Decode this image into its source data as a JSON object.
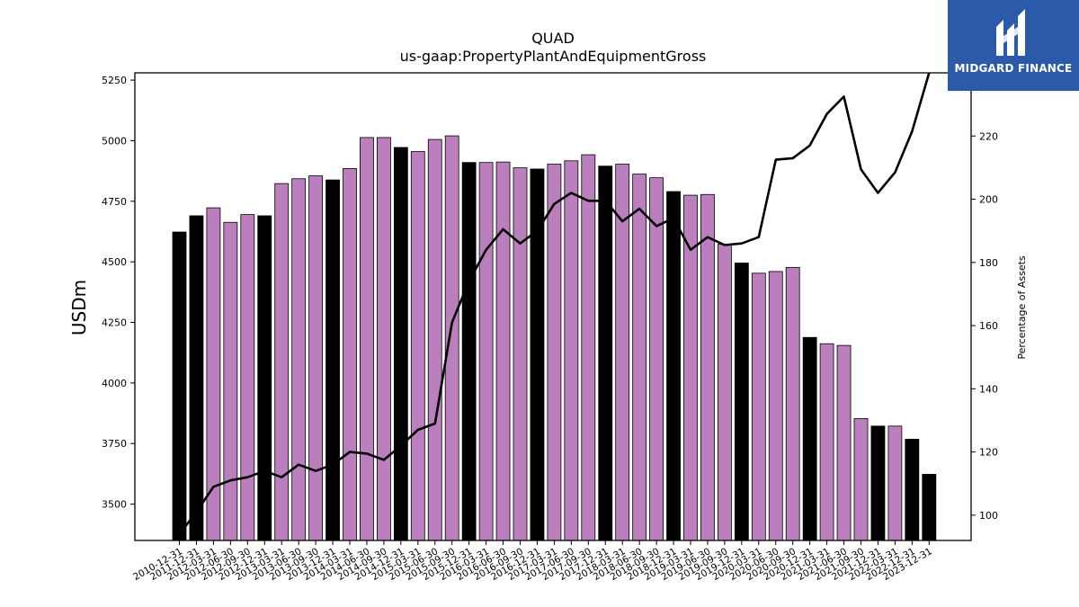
{
  "brand": {
    "name": "MIDGARD FINANCE",
    "bg_color": "#2a5aa8"
  },
  "chart_data": {
    "type": "bar",
    "title": "QUAD",
    "subtitle": "us-gaap:PropertyPlantAndEquipmentGross",
    "ylabel": "USDm",
    "y2label": "Percentage of Assets",
    "ylim": [
      3350,
      5280
    ],
    "y2lim": [
      92,
      240
    ],
    "yticks": [
      3500,
      3750,
      4000,
      4250,
      4500,
      4750,
      5000,
      5250
    ],
    "y2ticks": [
      100,
      120,
      140,
      160,
      180,
      200,
      220
    ],
    "colors": {
      "annual": "#000000",
      "quarterly": "#bb7fbe",
      "line": "#000000"
    },
    "categories": [
      "2010-12-31",
      "2011-12-31",
      "2012-03-31",
      "2012-06-30",
      "2012-09-30",
      "2012-12-31",
      "2013-03-31",
      "2013-06-30",
      "2013-09-30",
      "2013-12-31",
      "2014-03-31",
      "2014-06-30",
      "2014-09-30",
      "2014-12-31",
      "2015-03-31",
      "2015-06-30",
      "2015-09-30",
      "2015-12-31",
      "2016-03-31",
      "2016-06-30",
      "2016-09-30",
      "2016-12-31",
      "2017-03-31",
      "2017-06-30",
      "2017-09-30",
      "2017-12-31",
      "2018-03-31",
      "2018-06-30",
      "2018-09-30",
      "2018-12-31",
      "2019-03-31",
      "2019-06-30",
      "2019-09-30",
      "2019-12-31",
      "2020-03-31",
      "2020-06-30",
      "2020-09-30",
      "2020-12-31",
      "2021-03-31",
      "2021-06-30",
      "2021-09-30",
      "2021-12-31",
      "2022-03-31",
      "2022-12-31",
      "2023-12-31"
    ],
    "annual": [
      true,
      true,
      false,
      false,
      false,
      true,
      false,
      false,
      false,
      true,
      false,
      false,
      false,
      true,
      false,
      false,
      false,
      true,
      false,
      false,
      false,
      true,
      false,
      false,
      false,
      true,
      false,
      false,
      false,
      true,
      false,
      false,
      false,
      true,
      false,
      false,
      false,
      true,
      false,
      false,
      false,
      true,
      false,
      true,
      true
    ],
    "series": [
      {
        "name": "",
        "kind": "bar",
        "axis": "left",
        "values": [
          4623,
          4690,
          4723,
          4663,
          4695,
          4690,
          4823,
          4843,
          4855,
          4838,
          4885,
          5013,
          5013,
          4972,
          4955,
          5005,
          5020,
          4910,
          4910,
          4912,
          4888,
          4883,
          4903,
          4917,
          4942,
          4895,
          4903,
          4862,
          4847,
          4790,
          4775,
          4778,
          4573,
          4495,
          4453,
          4460,
          4477,
          4188,
          4162,
          4155,
          3853,
          3822,
          3822,
          3768,
          3623
        ]
      },
      {
        "name": "",
        "kind": "line",
        "axis": "right",
        "values": [
          94,
          101,
          109,
          111,
          112,
          114,
          112,
          116,
          114,
          116,
          120,
          119.5,
          117.5,
          122,
          127,
          129,
          161,
          174,
          184,
          190.5,
          186,
          190,
          198.5,
          202,
          199.5,
          199.5,
          193,
          197,
          191.5,
          194,
          184,
          188,
          185.5,
          186,
          188,
          212.5,
          213,
          217,
          227,
          232.5,
          209.5,
          202,
          208.5,
          221.5,
          240
        ]
      }
    ]
  }
}
